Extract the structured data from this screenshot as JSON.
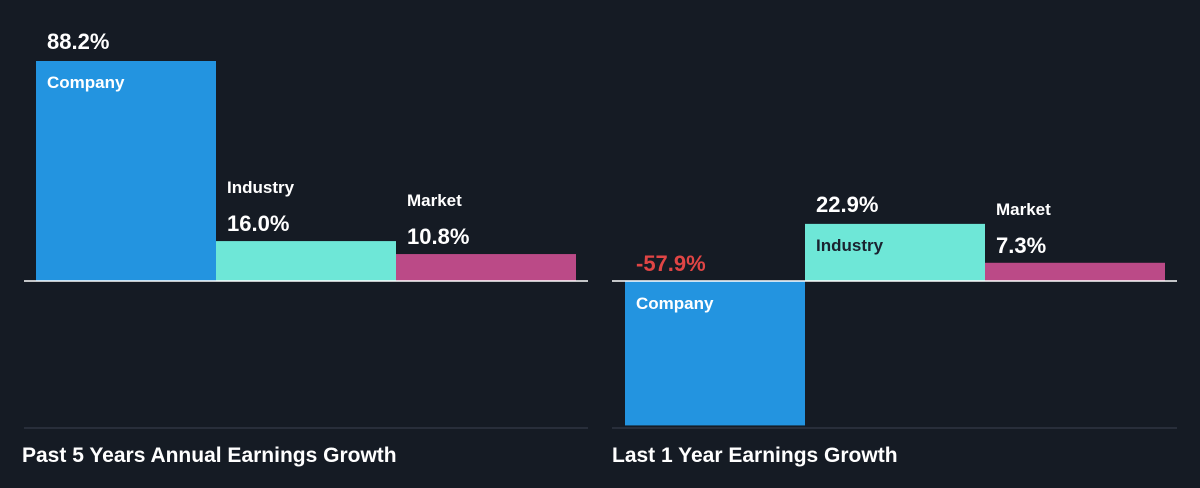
{
  "chart_data": [
    {
      "type": "bar",
      "title": "Past 5 Years Annual Earnings Growth",
      "categories": [
        "Company",
        "Industry",
        "Market"
      ],
      "values": [
        88.2,
        16.0,
        10.8
      ],
      "value_labels": [
        "88.2%",
        "16.0%",
        "10.8%"
      ],
      "unit": "%",
      "colors": [
        "#2394e0",
        "#6ee7d7",
        "#bb4a87"
      ],
      "value_label_colors": [
        "#ffffff",
        "#ffffff",
        "#ffffff"
      ]
    },
    {
      "type": "bar",
      "title": "Last 1 Year Earnings Growth",
      "categories": [
        "Company",
        "Industry",
        "Market"
      ],
      "values": [
        -57.9,
        22.9,
        7.3
      ],
      "value_labels": [
        "-57.9%",
        "22.9%",
        "7.3%"
      ],
      "unit": "%",
      "colors": [
        "#2394e0",
        "#6ee7d7",
        "#bb4a87"
      ],
      "value_label_colors": [
        "#e04545",
        "#ffffff",
        "#ffffff"
      ]
    }
  ],
  "theme": {
    "background": "#151b24",
    "axis_color": "#ffffff",
    "baseline_color": "#3a4250",
    "text_on_dark": "#ffffff",
    "text_on_light": "#1a2330"
  }
}
